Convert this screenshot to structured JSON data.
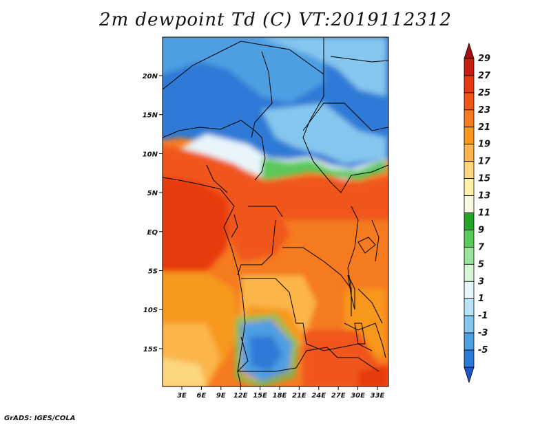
{
  "title": "2m dewpoint Td (C) VT:2019112312",
  "credit": "GrADS: IGES/COLA",
  "axes": {
    "lat_ticks": [
      "20N",
      "15N",
      "10N",
      "5N",
      "EQ",
      "5S",
      "10S",
      "15S"
    ],
    "lon_ticks": [
      "3E",
      "6E",
      "9E",
      "12E",
      "15E",
      "18E",
      "21E",
      "24E",
      "27E",
      "30E",
      "33E"
    ]
  },
  "colorbar": {
    "labels": [
      "29",
      "27",
      "25",
      "23",
      "21",
      "19",
      "17",
      "15",
      "13",
      "11",
      "9",
      "7",
      "5",
      "3",
      "1",
      "-1",
      "-3",
      "-5"
    ],
    "colors": [
      "#a50f15",
      "#c81e12",
      "#e83a10",
      "#f0561a",
      "#f57a20",
      "#f7971e",
      "#fbb54a",
      "#fdd680",
      "#fff1a8",
      "#fafae0",
      "#23a626",
      "#5bc85a",
      "#9ae39a",
      "#d6f7d6",
      "#e8f6fc",
      "#b8e2f6",
      "#85c7ee",
      "#4d9fe2",
      "#2d7ad6",
      "#1c56c8"
    ]
  }
}
